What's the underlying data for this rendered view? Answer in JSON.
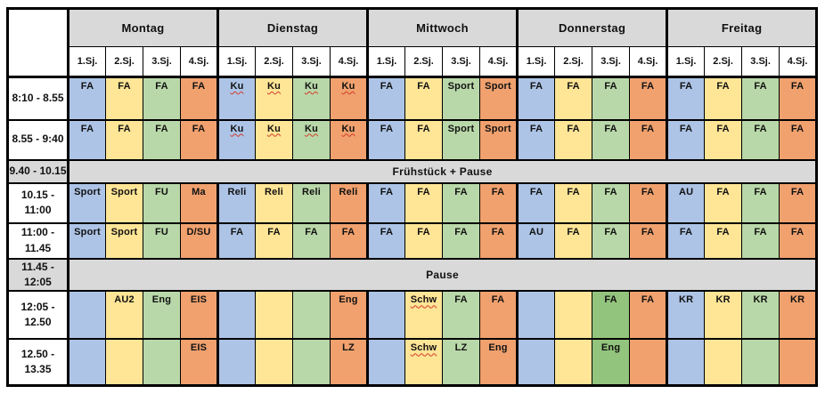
{
  "table": {
    "corner": "",
    "days": [
      "Montag",
      "Dienstag",
      "Mittwoch",
      "Donnerstag",
      "Freitag"
    ],
    "periods": [
      "1.Sj.",
      "2.Sj.",
      "3.Sj.",
      "4.Sj."
    ],
    "colors": {
      "blue": "#adc4e6",
      "yellow": "#ffe596",
      "green": "#b9d8a9",
      "darkgreen": "#93c47d",
      "orange": "#f0a16e",
      "gray": "#d9d9d9",
      "squiggle_red": "#d23b2a"
    },
    "rows": [
      {
        "type": "lessons",
        "time": "8:10 - 8.55",
        "cells": [
          {
            "t": "FA"
          },
          {
            "t": "FA"
          },
          {
            "t": "FA"
          },
          {
            "t": "FA"
          },
          {
            "t": "Ku",
            "u": true
          },
          {
            "t": "Ku",
            "u": true
          },
          {
            "t": "Ku",
            "u": true
          },
          {
            "t": "Ku",
            "u": true
          },
          {
            "t": "FA"
          },
          {
            "t": "FA"
          },
          {
            "t": "Sport"
          },
          {
            "t": "Sport"
          },
          {
            "t": "FA"
          },
          {
            "t": "FA"
          },
          {
            "t": "FA"
          },
          {
            "t": "FA"
          },
          {
            "t": "FA"
          },
          {
            "t": "FA"
          },
          {
            "t": "FA"
          },
          {
            "t": "FA"
          }
        ]
      },
      {
        "type": "lessons",
        "time": "8.55 - 9:40",
        "cells": [
          {
            "t": "FA"
          },
          {
            "t": "FA"
          },
          {
            "t": "FA"
          },
          {
            "t": "FA"
          },
          {
            "t": "Ku",
            "u": true
          },
          {
            "t": "Ku",
            "u": true
          },
          {
            "t": "Ku",
            "u": true
          },
          {
            "t": "Ku",
            "u": true
          },
          {
            "t": "FA"
          },
          {
            "t": "FA"
          },
          {
            "t": "Sport"
          },
          {
            "t": "Sport"
          },
          {
            "t": "FA"
          },
          {
            "t": "FA"
          },
          {
            "t": "FA"
          },
          {
            "t": "FA"
          },
          {
            "t": "FA"
          },
          {
            "t": "FA"
          },
          {
            "t": "FA"
          },
          {
            "t": "FA"
          }
        ]
      },
      {
        "type": "band",
        "time": "9.40 - 10.15",
        "label": "Frühstück + Pause"
      },
      {
        "type": "lessons",
        "time": "10.15 -\n11:00",
        "cells": [
          {
            "t": "Sport"
          },
          {
            "t": "Sport"
          },
          {
            "t": "FU"
          },
          {
            "t": "Ma"
          },
          {
            "t": "Reli"
          },
          {
            "t": "Reli"
          },
          {
            "t": "Reli"
          },
          {
            "t": "Reli"
          },
          {
            "t": "FA"
          },
          {
            "t": "FA"
          },
          {
            "t": "FA"
          },
          {
            "t": "FA"
          },
          {
            "t": "FA"
          },
          {
            "t": "FA"
          },
          {
            "t": "FA"
          },
          {
            "t": "FA"
          },
          {
            "t": "AU"
          },
          {
            "t": "FA"
          },
          {
            "t": "FA"
          },
          {
            "t": "FA"
          }
        ]
      },
      {
        "type": "lessons",
        "time": "11:00 -\n11.45",
        "cells": [
          {
            "t": "Sport"
          },
          {
            "t": "Sport"
          },
          {
            "t": "FU"
          },
          {
            "t": "D/SU"
          },
          {
            "t": "FA"
          },
          {
            "t": "FA"
          },
          {
            "t": "FA"
          },
          {
            "t": "FA"
          },
          {
            "t": "FA"
          },
          {
            "t": "FA"
          },
          {
            "t": "FA"
          },
          {
            "t": "FA"
          },
          {
            "t": "AU"
          },
          {
            "t": "FA"
          },
          {
            "t": "FA"
          },
          {
            "t": "FA"
          },
          {
            "t": "FA"
          },
          {
            "t": "FA"
          },
          {
            "t": "FA"
          },
          {
            "t": "FA"
          }
        ]
      },
      {
        "type": "band",
        "time": "11.45 -\n12:05",
        "label": "Pause"
      },
      {
        "type": "lessons",
        "time": "12:05 -\n12.50",
        "cells": [
          {
            "t": ""
          },
          {
            "t": "AU2"
          },
          {
            "t": "Eng"
          },
          {
            "t": "EIS"
          },
          {
            "t": ""
          },
          {
            "t": ""
          },
          {
            "t": ""
          },
          {
            "t": "Eng"
          },
          {
            "t": ""
          },
          {
            "t": "Schw",
            "u": true
          },
          {
            "t": "FA"
          },
          {
            "t": "FA"
          },
          {
            "t": ""
          },
          {
            "t": ""
          },
          {
            "t": "FA",
            "c": "dark"
          },
          {
            "t": "FA"
          },
          {
            "t": "KR"
          },
          {
            "t": "KR"
          },
          {
            "t": "KR"
          },
          {
            "t": "KR"
          }
        ]
      },
      {
        "type": "lessons",
        "time": "12.50 -\n13.35",
        "cells": [
          {
            "t": ""
          },
          {
            "t": ""
          },
          {
            "t": ""
          },
          {
            "t": "EIS"
          },
          {
            "t": ""
          },
          {
            "t": ""
          },
          {
            "t": ""
          },
          {
            "t": "LZ"
          },
          {
            "t": ""
          },
          {
            "t": "Schw",
            "u": true
          },
          {
            "t": "LZ"
          },
          {
            "t": "Eng"
          },
          {
            "t": ""
          },
          {
            "t": ""
          },
          {
            "t": "Eng",
            "c": "dark"
          },
          {
            "t": ""
          },
          {
            "t": ""
          },
          {
            "t": ""
          },
          {
            "t": ""
          },
          {
            "t": ""
          }
        ]
      }
    ]
  }
}
